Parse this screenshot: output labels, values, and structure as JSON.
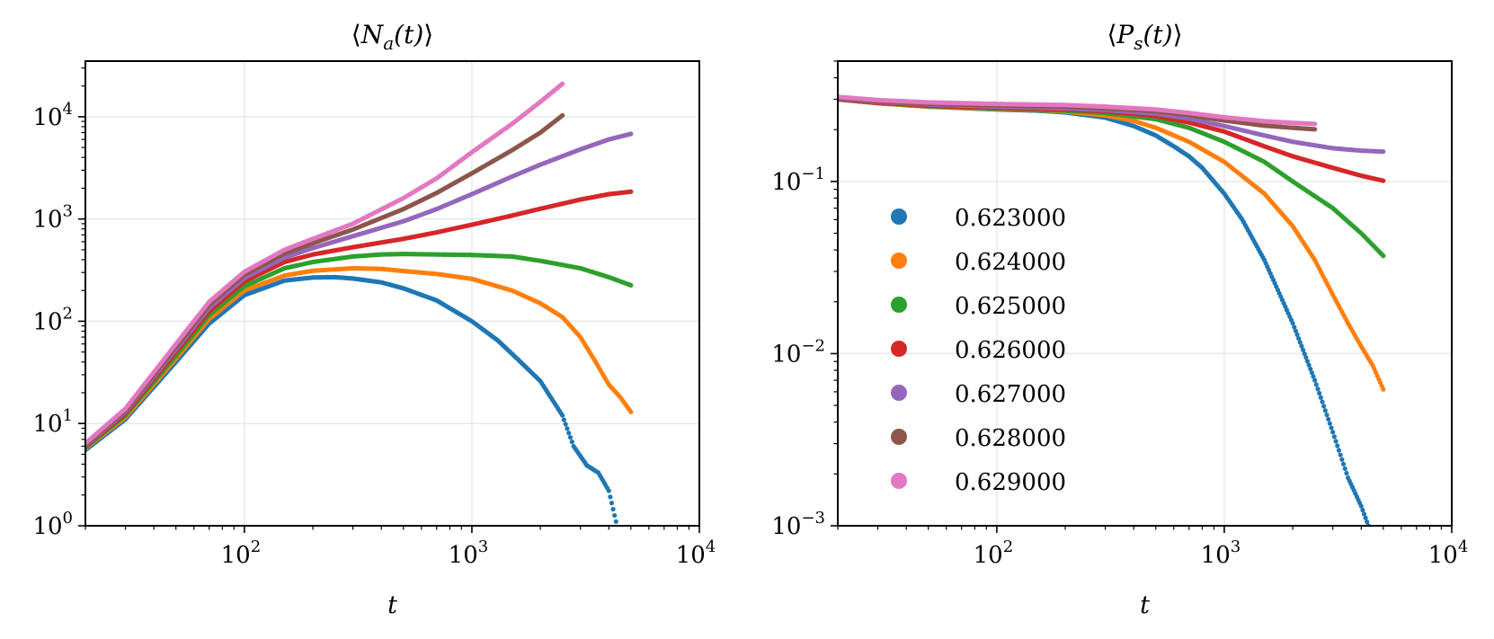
{
  "chart_data": [
    {
      "type": "scatter",
      "title": "⟨N_a(t)⟩",
      "title_parts": {
        "main": "N",
        "sub": "a",
        "arg": "(t)",
        "left": "⟨",
        "right": "⟩"
      },
      "xlabel": "t",
      "ylabel": "",
      "xscale": "log",
      "yscale": "log",
      "xlim": [
        20,
        10000
      ],
      "ylim": [
        1,
        35000
      ],
      "xticks": [
        {
          "value": 100,
          "base": "10",
          "exp": "2"
        },
        {
          "value": 1000,
          "base": "10",
          "exp": "3"
        },
        {
          "value": 10000,
          "base": "10",
          "exp": "4"
        }
      ],
      "yticks": [
        {
          "value": 1,
          "base": "10",
          "exp": "0"
        },
        {
          "value": 10,
          "base": "10",
          "exp": "1"
        },
        {
          "value": 100,
          "base": "10",
          "exp": "2"
        },
        {
          "value": 1000,
          "base": "10",
          "exp": "3"
        },
        {
          "value": 10000,
          "base": "10",
          "exp": "4"
        }
      ],
      "grid": true,
      "series": [
        {
          "name": "0.623000",
          "color": "#1f77b4",
          "x": [
            20,
            30,
            50,
            70,
            100,
            150,
            200,
            250,
            300,
            400,
            500,
            700,
            1000,
            1300,
            1600,
            2000,
            2500,
            2800,
            3200,
            3600,
            4000,
            4300
          ],
          "y": [
            5.5,
            11,
            40,
            95,
            180,
            250,
            268,
            270,
            262,
            240,
            210,
            160,
            100,
            65,
            42,
            26,
            12,
            6,
            3.9,
            3.3,
            2.2,
            1.1
          ]
        },
        {
          "name": "0.624000",
          "color": "#ff7f0e",
          "x": [
            20,
            30,
            50,
            70,
            100,
            150,
            200,
            300,
            400,
            500,
            700,
            1000,
            1500,
            2000,
            2500,
            3000,
            3500,
            4000,
            4500,
            5000
          ],
          "y": [
            5.7,
            11.5,
            43,
            105,
            200,
            280,
            312,
            330,
            325,
            310,
            290,
            260,
            200,
            150,
            110,
            70,
            40,
            24,
            18,
            13
          ]
        },
        {
          "name": "0.625000",
          "color": "#2ca02c",
          "x": [
            20,
            30,
            50,
            70,
            100,
            150,
            200,
            300,
            400,
            500,
            700,
            1000,
            1500,
            2000,
            3000,
            4000,
            5000
          ],
          "y": [
            5.8,
            12,
            46,
            115,
            220,
            330,
            380,
            430,
            450,
            455,
            450,
            445,
            430,
            390,
            330,
            270,
            225
          ]
        },
        {
          "name": "0.626000",
          "color": "#d62728",
          "x": [
            20,
            30,
            50,
            70,
            100,
            150,
            200,
            300,
            500,
            700,
            1000,
            1500,
            2000,
            3000,
            4000,
            5000
          ],
          "y": [
            6,
            12.5,
            50,
            125,
            245,
            380,
            450,
            530,
            640,
            740,
            880,
            1080,
            1260,
            1550,
            1750,
            1850
          ]
        },
        {
          "name": "0.627000",
          "color": "#9467bd",
          "x": [
            20,
            30,
            50,
            70,
            100,
            150,
            200,
            300,
            500,
            700,
            1000,
            1500,
            2000,
            3000,
            4000,
            5000
          ],
          "y": [
            6.1,
            13,
            53,
            135,
            265,
            420,
            520,
            680,
            950,
            1250,
            1750,
            2600,
            3400,
            4800,
            6000,
            6800
          ]
        },
        {
          "name": "0.628000",
          "color": "#8c564b",
          "x": [
            20,
            30,
            50,
            70,
            100,
            150,
            200,
            300,
            500,
            700,
            1000,
            1500,
            2000,
            2500
          ],
          "y": [
            6.2,
            13.5,
            56,
            145,
            285,
            460,
            580,
            790,
            1250,
            1800,
            2800,
            4700,
            7000,
            10300
          ]
        },
        {
          "name": "0.629000",
          "color": "#e377c2",
          "x": [
            20,
            30,
            50,
            70,
            100,
            150,
            200,
            300,
            500,
            700,
            1000,
            1500,
            2000,
            2500
          ],
          "y": [
            6.4,
            14,
            60,
            155,
            305,
            500,
            640,
            900,
            1600,
            2500,
            4500,
            8500,
            14000,
            21000
          ]
        }
      ]
    },
    {
      "type": "scatter",
      "title": "⟨P_s(t)⟩",
      "title_parts": {
        "main": "P",
        "sub": "s",
        "arg": "(t)",
        "left": "⟨",
        "right": "⟩"
      },
      "xlabel": "t",
      "ylabel": "",
      "xscale": "log",
      "yscale": "log",
      "xlim": [
        20,
        10000
      ],
      "ylim": [
        0.001,
        0.5
      ],
      "xticks": [
        {
          "value": 100,
          "base": "10",
          "exp": "2"
        },
        {
          "value": 1000,
          "base": "10",
          "exp": "3"
        },
        {
          "value": 10000,
          "base": "10",
          "exp": "4"
        }
      ],
      "yticks": [
        {
          "value": 0.001,
          "base": "10",
          "exp": "−3"
        },
        {
          "value": 0.01,
          "base": "10",
          "exp": "−2"
        },
        {
          "value": 0.1,
          "base": "10",
          "exp": "−1"
        }
      ],
      "grid": true,
      "legend": {
        "position": "center-left",
        "entries": [
          "0.623000",
          "0.624000",
          "0.625000",
          "0.626000",
          "0.627000",
          "0.628000",
          "0.629000"
        ]
      },
      "series": [
        {
          "name": "0.623000",
          "color": "#1f77b4",
          "x": [
            20,
            30,
            50,
            100,
            150,
            200,
            300,
            400,
            500,
            600,
            700,
            800,
            1000,
            1200,
            1500,
            2000,
            2500,
            3000,
            3500,
            4000,
            4300
          ],
          "y": [
            0.3,
            0.285,
            0.272,
            0.262,
            0.258,
            0.252,
            0.235,
            0.21,
            0.185,
            0.16,
            0.14,
            0.12,
            0.085,
            0.06,
            0.035,
            0.015,
            0.007,
            0.0035,
            0.0019,
            0.0013,
            0.001
          ]
        },
        {
          "name": "0.624000",
          "color": "#ff7f0e",
          "x": [
            20,
            30,
            50,
            100,
            150,
            200,
            300,
            400,
            500,
            700,
            1000,
            1500,
            2000,
            2500,
            3000,
            3500,
            4000,
            4500,
            5000
          ],
          "y": [
            0.3,
            0.285,
            0.272,
            0.264,
            0.26,
            0.255,
            0.242,
            0.225,
            0.205,
            0.17,
            0.13,
            0.085,
            0.055,
            0.035,
            0.022,
            0.015,
            0.011,
            0.0085,
            0.0062
          ]
        },
        {
          "name": "0.625000",
          "color": "#2ca02c",
          "x": [
            20,
            30,
            50,
            100,
            200,
            300,
            500,
            700,
            1000,
            1500,
            2000,
            3000,
            4000,
            5000
          ],
          "y": [
            0.3,
            0.286,
            0.274,
            0.266,
            0.258,
            0.25,
            0.23,
            0.205,
            0.17,
            0.13,
            0.1,
            0.07,
            0.05,
            0.037
          ]
        },
        {
          "name": "0.626000",
          "color": "#d62728",
          "x": [
            20,
            30,
            50,
            100,
            200,
            300,
            500,
            700,
            1000,
            1500,
            2000,
            3000,
            4000,
            5000
          ],
          "y": [
            0.3,
            0.287,
            0.276,
            0.268,
            0.262,
            0.256,
            0.24,
            0.22,
            0.195,
            0.16,
            0.14,
            0.12,
            0.108,
            0.101
          ]
        },
        {
          "name": "0.627000",
          "color": "#9467bd",
          "x": [
            20,
            30,
            50,
            100,
            200,
            300,
            500,
            700,
            1000,
            1500,
            2000,
            3000,
            4000,
            5000
          ],
          "y": [
            0.302,
            0.29,
            0.28,
            0.272,
            0.266,
            0.26,
            0.248,
            0.232,
            0.21,
            0.185,
            0.17,
            0.156,
            0.151,
            0.149
          ]
        },
        {
          "name": "0.628000",
          "color": "#8c564b",
          "x": [
            20,
            30,
            50,
            100,
            200,
            300,
            500,
            700,
            1000,
            1500,
            2000,
            2500
          ],
          "y": [
            0.305,
            0.292,
            0.283,
            0.277,
            0.272,
            0.266,
            0.256,
            0.243,
            0.226,
            0.211,
            0.205,
            0.201
          ]
        },
        {
          "name": "0.629000",
          "color": "#e377c2",
          "x": [
            20,
            30,
            50,
            100,
            200,
            300,
            500,
            700,
            1000,
            1500,
            2000,
            2500
          ],
          "y": [
            0.31,
            0.297,
            0.288,
            0.282,
            0.278,
            0.272,
            0.262,
            0.25,
            0.236,
            0.224,
            0.219,
            0.216
          ]
        }
      ]
    }
  ]
}
